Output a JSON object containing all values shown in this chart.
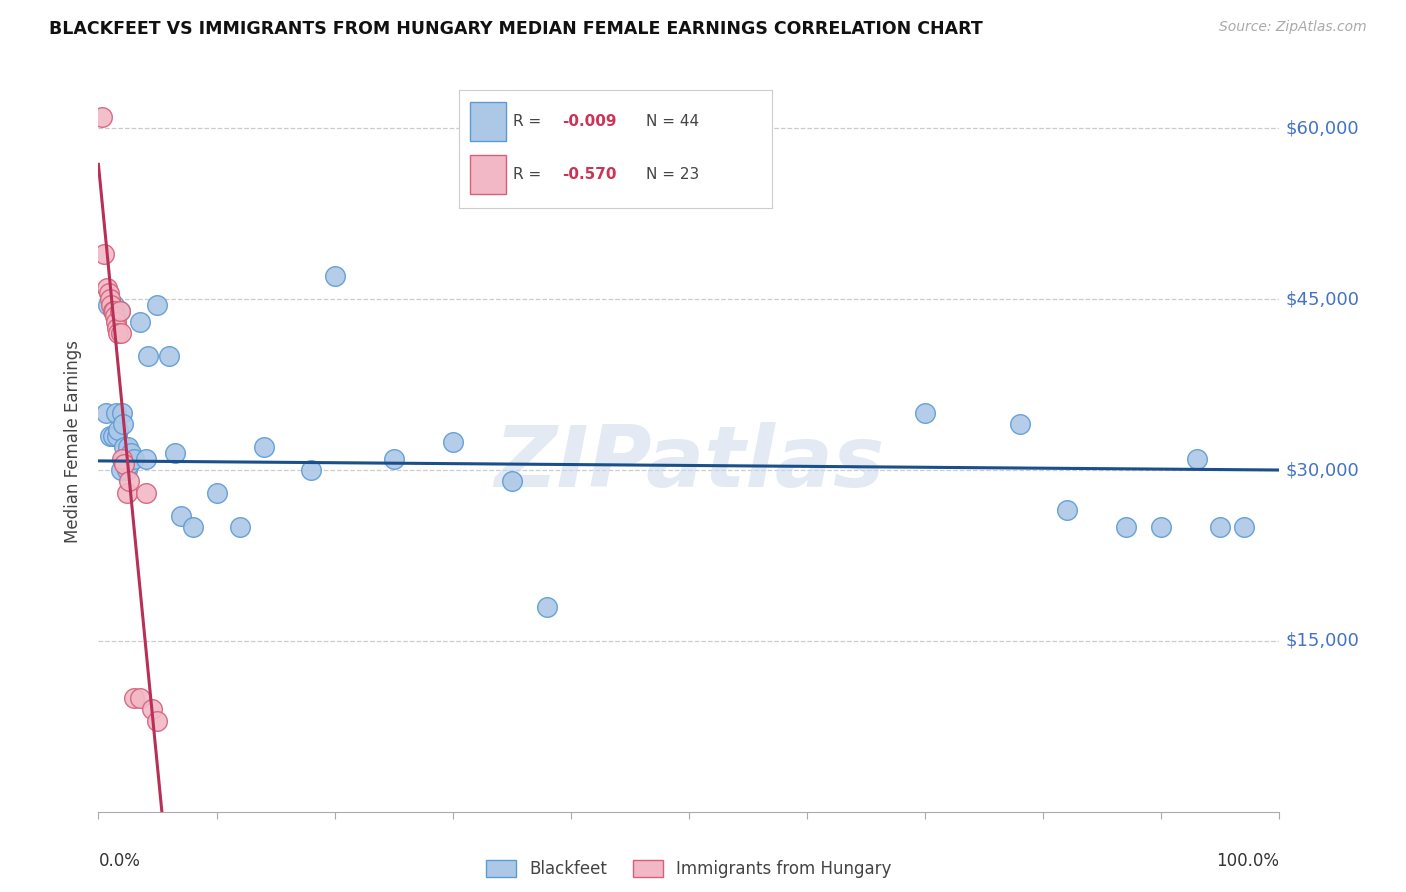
{
  "title": "BLACKFEET VS IMMIGRANTS FROM HUNGARY MEDIAN FEMALE EARNINGS CORRELATION CHART",
  "source": "Source: ZipAtlas.com",
  "ylabel": "Median Female Earnings",
  "ylim": [
    0,
    65000
  ],
  "xlim": [
    0.0,
    1.0
  ],
  "watermark": "ZIPatlas",
  "blue_color": "#adc8e6",
  "blue_edge": "#5b9bd5",
  "pink_color": "#f2b8c6",
  "pink_edge": "#d4607a",
  "line_blue": "#1a4f8a",
  "line_pink": "#b83058",
  "blue_x": [
    0.006,
    0.008,
    0.01,
    0.012,
    0.013,
    0.015,
    0.016,
    0.017,
    0.018,
    0.019,
    0.02,
    0.021,
    0.022,
    0.022,
    0.024,
    0.025,
    0.026,
    0.028,
    0.03,
    0.035,
    0.04,
    0.042,
    0.05,
    0.06,
    0.065,
    0.07,
    0.08,
    0.1,
    0.12,
    0.14,
    0.18,
    0.2,
    0.25,
    0.3,
    0.35,
    0.38,
    0.7,
    0.78,
    0.82,
    0.87,
    0.9,
    0.93,
    0.95,
    0.97
  ],
  "blue_y": [
    35000,
    44500,
    33000,
    33000,
    44500,
    35000,
    33000,
    33500,
    44000,
    30000,
    35000,
    34000,
    32000,
    31000,
    30000,
    32000,
    30500,
    31500,
    31000,
    43000,
    31000,
    40000,
    44500,
    40000,
    31500,
    26000,
    25000,
    28000,
    25000,
    32000,
    30000,
    47000,
    31000,
    32500,
    29000,
    18000,
    35000,
    34000,
    26500,
    25000,
    25000,
    31000,
    25000,
    25000
  ],
  "pink_x": [
    0.003,
    0.005,
    0.007,
    0.009,
    0.01,
    0.011,
    0.012,
    0.013,
    0.014,
    0.015,
    0.016,
    0.017,
    0.018,
    0.019,
    0.02,
    0.022,
    0.024,
    0.026,
    0.03,
    0.035,
    0.04,
    0.045,
    0.05
  ],
  "pink_y": [
    61000,
    49000,
    46000,
    45500,
    45000,
    44500,
    44000,
    44000,
    43500,
    43000,
    42500,
    42000,
    44000,
    42000,
    31000,
    30500,
    28000,
    29000,
    10000,
    10000,
    28000,
    9000,
    8000
  ],
  "blue_line_y_intercept": 30800,
  "blue_line_slope": -800,
  "pink_line_solid_end": 0.06,
  "pink_line_dash_end": 0.22
}
